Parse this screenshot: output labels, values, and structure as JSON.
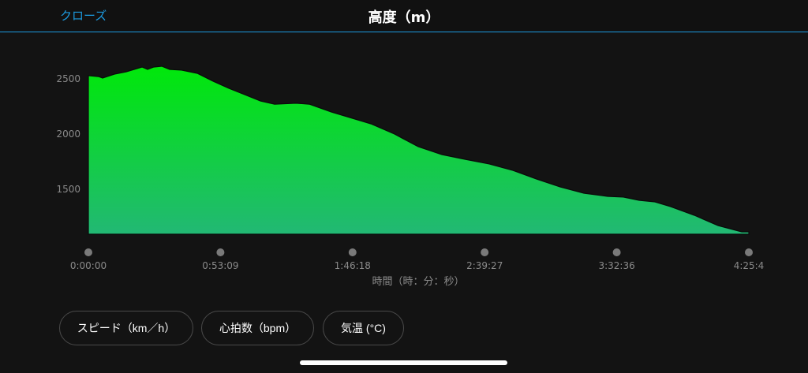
{
  "header": {
    "close_label": "クローズ",
    "title": "高度（m）",
    "accent_color": "#1c9be0"
  },
  "chart_data": {
    "type": "area",
    "title": "高度（m）",
    "xlabel": "時間（時：分：秒）",
    "ylabel": "",
    "y_ticks": [
      2500,
      2000,
      1500
    ],
    "ylim": [
      1100,
      2650
    ],
    "x_ticks": [
      "0:00:00",
      "0:53:09",
      "1:46:18",
      "2:39:27",
      "3:32:36",
      "4:25:4"
    ],
    "xlim": [
      "0:00:00",
      "4:25:45"
    ],
    "grid": false,
    "fill_gradient": [
      "#00e80a",
      "#22b874"
    ],
    "points": [
      [
        "0:00:00",
        2529
      ],
      [
        "0:04:08",
        2521
      ],
      [
        "0:05:43",
        2507
      ],
      [
        "0:10:29",
        2543
      ],
      [
        "0:15:14",
        2564
      ],
      [
        "0:18:25",
        2586
      ],
      [
        "0:21:35",
        2607
      ],
      [
        "0:23:49",
        2586
      ],
      [
        "0:26:21",
        2607
      ],
      [
        "0:29:32",
        2614
      ],
      [
        "0:32:42",
        2586
      ],
      [
        "0:37:28",
        2579
      ],
      [
        "0:43:49",
        2550
      ],
      [
        "0:50:10",
        2479
      ],
      [
        "0:56:31",
        2414
      ],
      [
        "1:02:52",
        2357
      ],
      [
        "1:09:13",
        2300
      ],
      [
        "1:14:56",
        2271
      ],
      [
        "1:23:30",
        2279
      ],
      [
        "1:28:54",
        2271
      ],
      [
        "1:37:47",
        2200
      ],
      [
        "1:44:08",
        2157
      ],
      [
        "1:53:40",
        2093
      ],
      [
        "2:03:11",
        2000
      ],
      [
        "2:12:43",
        1886
      ],
      [
        "2:22:14",
        1814
      ],
      [
        "2:31:46",
        1771
      ],
      [
        "2:41:17",
        1729
      ],
      [
        "2:50:49",
        1671
      ],
      [
        "3:00:20",
        1593
      ],
      [
        "3:09:52",
        1521
      ],
      [
        "3:19:23",
        1464
      ],
      [
        "3:28:55",
        1436
      ],
      [
        "3:35:16",
        1429
      ],
      [
        "3:41:37",
        1400
      ],
      [
        "3:47:58",
        1386
      ],
      [
        "3:54:19",
        1343
      ],
      [
        "4:03:50",
        1264
      ],
      [
        "4:13:22",
        1171
      ],
      [
        "4:22:53",
        1114
      ],
      [
        "4:25:45",
        1114
      ]
    ]
  },
  "buttons": [
    {
      "label": "スピード（km／h）"
    },
    {
      "label": "心拍数（bpm）"
    },
    {
      "label": "気温 (°C)"
    }
  ]
}
